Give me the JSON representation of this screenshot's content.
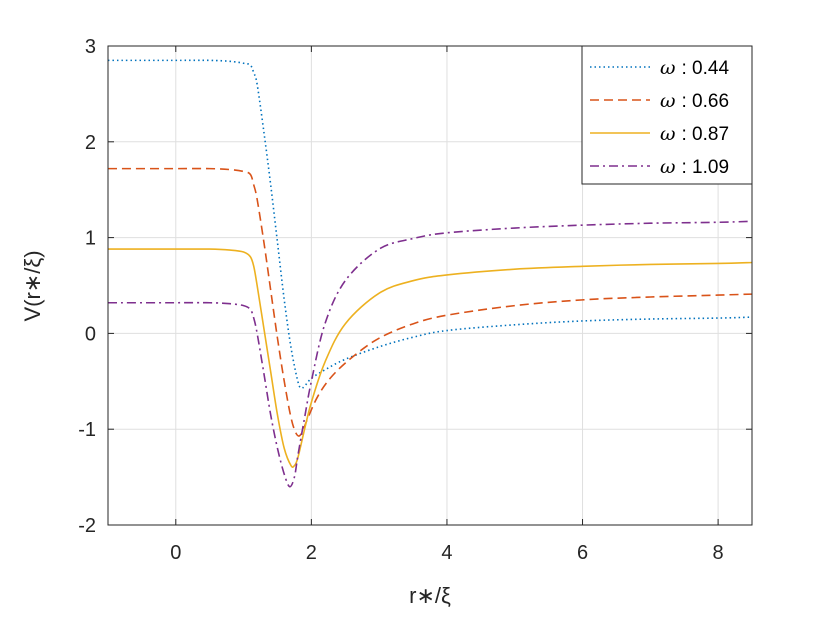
{
  "chart_data": {
    "type": "line",
    "xlabel": "r∗/ξ",
    "ylabel": "V(r∗/ξ)",
    "xlim": [
      -1,
      8.5
    ],
    "ylim": [
      -2,
      3
    ],
    "xticks": [
      0,
      2,
      4,
      6,
      8
    ],
    "yticks": [
      -2,
      -1,
      0,
      1,
      2,
      3
    ],
    "xtick_labels": [
      "0",
      "2",
      "4",
      "6",
      "8"
    ],
    "ytick_labels": [
      "-2",
      "-1",
      "0",
      "1",
      "2",
      "3"
    ],
    "grid": true,
    "legend_position": "top-right",
    "series": [
      {
        "name": "ω : 0.44",
        "label_symbol": "ω",
        "label_value": ": 0.44",
        "color": "#0072BD",
        "style": "dotted",
        "x": [
          -1,
          0,
          0.5,
          0.8,
          1.0,
          1.1,
          1.15,
          1.2,
          1.3,
          1.4,
          1.5,
          1.6,
          1.7,
          1.8,
          1.85,
          1.9,
          2.0,
          2.2,
          2.5,
          3.0,
          3.5,
          4.0,
          5.0,
          6.0,
          7.0,
          8.0,
          8.5
        ],
        "y": [
          2.85,
          2.85,
          2.85,
          2.84,
          2.82,
          2.8,
          2.72,
          2.6,
          2.1,
          1.55,
          0.95,
          0.35,
          -0.15,
          -0.5,
          -0.57,
          -0.55,
          -0.47,
          -0.38,
          -0.27,
          -0.14,
          -0.04,
          0.03,
          0.09,
          0.13,
          0.15,
          0.16,
          0.17
        ]
      },
      {
        "name": "ω : 0.66",
        "label_symbol": "ω",
        "label_value": ": 0.66",
        "color": "#D95319",
        "style": "dashed",
        "x": [
          -1,
          0,
          0.5,
          0.8,
          1.0,
          1.1,
          1.15,
          1.2,
          1.3,
          1.4,
          1.5,
          1.6,
          1.7,
          1.78,
          1.85,
          1.95,
          2.1,
          2.3,
          2.6,
          3.0,
          3.5,
          4.0,
          5.0,
          6.0,
          7.0,
          8.0,
          8.5
        ],
        "y": [
          1.72,
          1.72,
          1.72,
          1.71,
          1.69,
          1.66,
          1.55,
          1.4,
          0.95,
          0.45,
          -0.05,
          -0.5,
          -0.88,
          -1.05,
          -1.05,
          -0.88,
          -0.65,
          -0.45,
          -0.25,
          -0.05,
          0.1,
          0.19,
          0.29,
          0.35,
          0.38,
          0.4,
          0.41
        ]
      },
      {
        "name": "ω : 0.87",
        "label_symbol": "ω",
        "label_value": ": 0.87",
        "color": "#EDB120",
        "style": "solid",
        "x": [
          -1,
          0,
          0.5,
          0.8,
          1.0,
          1.1,
          1.15,
          1.2,
          1.3,
          1.4,
          1.5,
          1.6,
          1.7,
          1.75,
          1.8,
          1.9,
          2.0,
          2.2,
          2.5,
          3.0,
          3.5,
          4.0,
          5.0,
          6.0,
          7.0,
          8.0,
          8.5
        ],
        "y": [
          0.88,
          0.88,
          0.88,
          0.87,
          0.85,
          0.8,
          0.7,
          0.5,
          0.05,
          -0.4,
          -0.85,
          -1.2,
          -1.38,
          -1.38,
          -1.3,
          -1.0,
          -0.72,
          -0.3,
          0.1,
          0.42,
          0.55,
          0.61,
          0.67,
          0.7,
          0.72,
          0.73,
          0.74
        ]
      },
      {
        "name": "ω : 1.09",
        "label_symbol": "ω",
        "label_value": ": 1.09",
        "color": "#7E2F8E",
        "style": "dashdot",
        "x": [
          -1,
          0,
          0.5,
          0.8,
          1.0,
          1.1,
          1.15,
          1.2,
          1.3,
          1.4,
          1.5,
          1.6,
          1.68,
          1.75,
          1.8,
          1.9,
          2.0,
          2.2,
          2.5,
          3.0,
          3.5,
          4.0,
          5.0,
          6.0,
          7.0,
          8.0,
          8.5
        ],
        "y": [
          0.32,
          0.32,
          0.32,
          0.31,
          0.29,
          0.25,
          0.16,
          0.0,
          -0.42,
          -0.85,
          -1.2,
          -1.47,
          -1.6,
          -1.5,
          -1.28,
          -0.88,
          -0.5,
          0.1,
          0.55,
          0.88,
          0.99,
          1.05,
          1.1,
          1.13,
          1.15,
          1.16,
          1.17
        ]
      }
    ]
  }
}
